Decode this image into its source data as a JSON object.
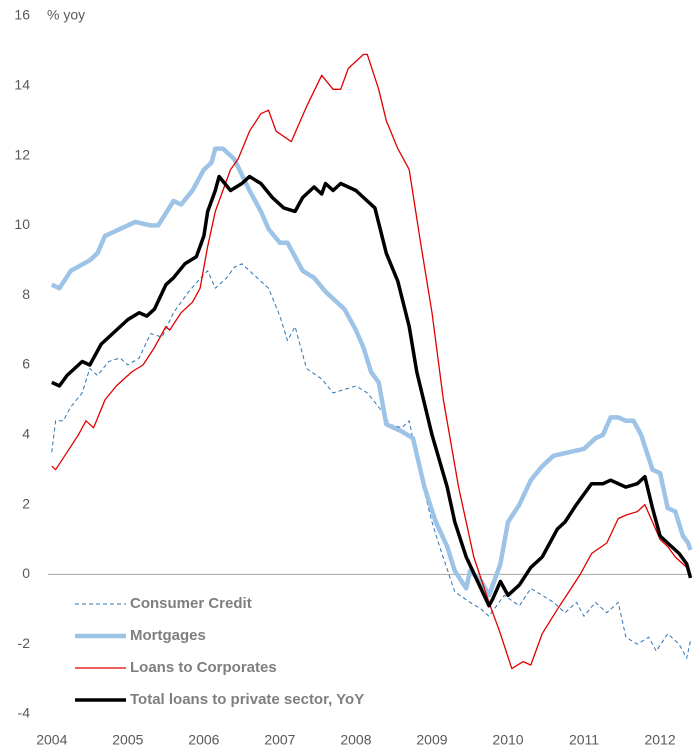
{
  "chart_data": {
    "type": "line",
    "y_axis_label": "% yoy",
    "xlim": [
      2003.95,
      2012.42
    ],
    "ylim": [
      -4,
      16
    ],
    "xticks": [
      2004,
      2005,
      2006,
      2007,
      2008,
      2009,
      2010,
      2011,
      2012
    ],
    "yticks": [
      -4,
      -2,
      0,
      2,
      4,
      6,
      8,
      10,
      12,
      14,
      16
    ],
    "legend": "lower-left",
    "series": [
      {
        "name": "Consumer Credit",
        "color": "#2e75b6",
        "style": "dashed",
        "x": [
          2004,
          2004.05,
          2004.15,
          2004.25,
          2004.4,
          2004.5,
          2004.6,
          2004.75,
          2004.9,
          2005.0,
          2005.15,
          2005.3,
          2005.45,
          2005.6,
          2005.8,
          2006.0,
          2006.05,
          2006.15,
          2006.3,
          2006.4,
          2006.5,
          2006.7,
          2006.85,
          2007.0,
          2007.1,
          2007.2,
          2007.35,
          2007.55,
          2007.7,
          2007.85,
          2008.0,
          2008.15,
          2008.3,
          2008.45,
          2008.6,
          2008.7,
          2008.85,
          2009.0,
          2009.1,
          2009.3,
          2009.5,
          2009.65,
          2009.75,
          2009.95,
          2010.15,
          2010.3,
          2010.45,
          2010.6,
          2010.75,
          2010.9,
          2011.0,
          2011.15,
          2011.3,
          2011.45,
          2011.55,
          2011.7,
          2011.85,
          2011.95,
          2012.1,
          2012.25,
          2012.35,
          2012.4
        ],
        "values": [
          3.5,
          4.4,
          4.4,
          4.8,
          5.2,
          5.9,
          5.7,
          6.1,
          6.2,
          6.0,
          6.2,
          6.9,
          6.8,
          7.5,
          8.1,
          8.6,
          8.7,
          8.2,
          8.5,
          8.8,
          8.9,
          8.5,
          8.2,
          7.4,
          6.7,
          7.1,
          5.9,
          5.6,
          5.2,
          5.3,
          5.4,
          5.2,
          4.8,
          4.3,
          4.2,
          4.4,
          2.8,
          1.5,
          0.8,
          -0.5,
          -0.8,
          -1.0,
          -1.2,
          -0.6,
          -0.9,
          -0.4,
          -0.6,
          -0.8,
          -1.1,
          -0.8,
          -1.2,
          -0.8,
          -1.1,
          -0.8,
          -1.8,
          -2.0,
          -1.8,
          -2.2,
          -1.7,
          -2.0,
          -2.4,
          -1.9
        ]
      },
      {
        "name": "Mortgages",
        "color": "#9dc3e6",
        "style": "thick",
        "x": [
          2004,
          2004.1,
          2004.25,
          2004.5,
          2004.6,
          2004.7,
          2005.0,
          2005.1,
          2005.3,
          2005.4,
          2005.6,
          2005.7,
          2005.85,
          2006.0,
          2006.1,
          2006.15,
          2006.25,
          2006.4,
          2006.6,
          2006.75,
          2006.85,
          2007.0,
          2007.1,
          2007.3,
          2007.45,
          2007.6,
          2007.75,
          2007.85,
          2008.0,
          2008.1,
          2008.2,
          2008.3,
          2008.4,
          2008.6,
          2008.75,
          2008.9,
          2009.05,
          2009.2,
          2009.3,
          2009.45,
          2009.5,
          2009.65,
          2009.75,
          2009.9,
          2010.0,
          2010.15,
          2010.3,
          2010.45,
          2010.6,
          2010.8,
          2011.0,
          2011.15,
          2011.25,
          2011.35,
          2011.45,
          2011.55,
          2011.65,
          2011.75,
          2011.9,
          2012.0,
          2012.1,
          2012.2,
          2012.3,
          2012.37,
          2012.4
        ],
        "values": [
          8.3,
          8.2,
          8.7,
          9.0,
          9.2,
          9.7,
          10.0,
          10.1,
          10.0,
          10.0,
          10.7,
          10.6,
          11.0,
          11.6,
          11.8,
          12.2,
          12.2,
          11.9,
          11.0,
          10.4,
          9.9,
          9.5,
          9.5,
          8.7,
          8.5,
          8.1,
          7.8,
          7.6,
          7.0,
          6.5,
          5.8,
          5.5,
          4.3,
          4.1,
          3.9,
          2.5,
          1.5,
          0.8,
          0.1,
          -0.4,
          0.1,
          -0.2,
          -0.6,
          0.3,
          1.5,
          2.0,
          2.7,
          3.1,
          3.4,
          3.5,
          3.6,
          3.9,
          4.0,
          4.5,
          4.5,
          4.4,
          4.4,
          4.0,
          3.0,
          2.9,
          1.9,
          1.8,
          1.1,
          0.9,
          0.7
        ]
      },
      {
        "name": "Loans to Corporates",
        "color": "#e00000",
        "style": "thin",
        "x": [
          2004,
          2004.05,
          2004.2,
          2004.35,
          2004.45,
          2004.55,
          2004.7,
          2004.85,
          2005.05,
          2005.2,
          2005.35,
          2005.5,
          2005.55,
          2005.7,
          2005.85,
          2005.95,
          2006.05,
          2006.15,
          2006.25,
          2006.35,
          2006.45,
          2006.6,
          2006.75,
          2006.85,
          2006.95,
          2007.15,
          2007.35,
          2007.55,
          2007.7,
          2007.8,
          2007.9,
          2008.1,
          2008.15,
          2008.3,
          2008.4,
          2008.55,
          2008.7,
          2008.85,
          2009.0,
          2009.15,
          2009.35,
          2009.55,
          2009.75,
          2009.9,
          2010.05,
          2010.2,
          2010.3,
          2010.45,
          2010.65,
          2010.8,
          2010.95,
          2011.1,
          2011.3,
          2011.45,
          2011.55,
          2011.7,
          2011.8,
          2011.9,
          2012.0,
          2012.1,
          2012.2,
          2012.35,
          2012.4
        ],
        "values": [
          3.1,
          3.0,
          3.5,
          4.0,
          4.4,
          4.2,
          5.0,
          5.4,
          5.8,
          6.0,
          6.5,
          7.1,
          7.0,
          7.5,
          7.8,
          8.2,
          9.4,
          10.4,
          11.0,
          11.6,
          11.9,
          12.7,
          13.2,
          13.3,
          12.7,
          12.4,
          13.4,
          14.3,
          13.9,
          13.9,
          14.5,
          14.9,
          14.9,
          13.9,
          13.0,
          12.2,
          11.6,
          9.5,
          7.5,
          5.0,
          2.5,
          0.5,
          -0.8,
          -1.7,
          -2.7,
          -2.5,
          -2.6,
          -1.7,
          -1.0,
          -0.5,
          0.0,
          0.6,
          0.9,
          1.6,
          1.7,
          1.8,
          2.0,
          1.5,
          1.0,
          0.8,
          0.5,
          0.2,
          0.0
        ]
      },
      {
        "name": "Total loans to private sector, YoY",
        "color": "#000000",
        "style": "bold",
        "x": [
          2004,
          2004.1,
          2004.2,
          2004.4,
          2004.5,
          2004.65,
          2004.85,
          2005.0,
          2005.15,
          2005.25,
          2005.35,
          2005.5,
          2005.6,
          2005.75,
          2005.9,
          2006.0,
          2006.05,
          2006.15,
          2006.2,
          2006.35,
          2006.5,
          2006.6,
          2006.75,
          2006.9,
          2007.05,
          2007.2,
          2007.3,
          2007.45,
          2007.55,
          2007.6,
          2007.7,
          2007.8,
          2008.0,
          2008.1,
          2008.25,
          2008.4,
          2008.55,
          2008.7,
          2008.8,
          2009.0,
          2009.2,
          2009.3,
          2009.45,
          2009.6,
          2009.75,
          2009.8,
          2009.9,
          2010.0,
          2010.15,
          2010.3,
          2010.45,
          2010.65,
          2010.75,
          2010.9,
          2011.1,
          2011.25,
          2011.35,
          2011.55,
          2011.7,
          2011.8,
          2011.9,
          2012.0,
          2012.1,
          2012.25,
          2012.35,
          2012.4
        ],
        "values": [
          5.5,
          5.4,
          5.7,
          6.1,
          6.0,
          6.6,
          7.0,
          7.3,
          7.5,
          7.4,
          7.6,
          8.3,
          8.5,
          8.9,
          9.1,
          9.7,
          10.4,
          11.0,
          11.4,
          11.0,
          11.2,
          11.4,
          11.2,
          10.8,
          10.5,
          10.4,
          10.8,
          11.1,
          10.9,
          11.2,
          11.0,
          11.2,
          11.0,
          10.8,
          10.5,
          9.2,
          8.4,
          7.1,
          5.8,
          4.0,
          2.5,
          1.5,
          0.5,
          -0.2,
          -0.9,
          -0.7,
          -0.2,
          -0.6,
          -0.3,
          0.2,
          0.5,
          1.3,
          1.5,
          2.0,
          2.6,
          2.6,
          2.7,
          2.5,
          2.6,
          2.8,
          1.9,
          1.1,
          0.9,
          0.6,
          0.3,
          -0.1
        ]
      }
    ]
  }
}
